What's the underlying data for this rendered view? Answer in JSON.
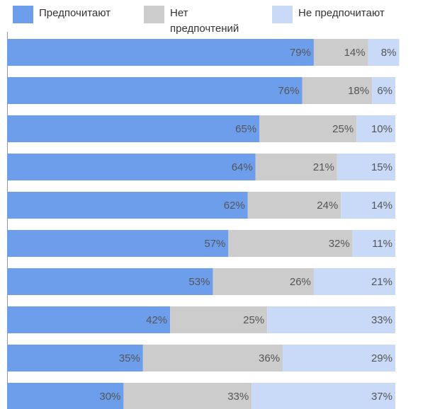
{
  "chart_data": {
    "type": "bar",
    "orientation": "horizontal",
    "stacked": true,
    "categories": [
      null,
      null,
      null,
      null,
      null,
      null,
      null,
      null,
      null,
      null
    ],
    "xlim": [
      0,
      100
    ],
    "legend": "top",
    "series": [
      {
        "name": "Предпочитают",
        "color": "#6d9eeb",
        "values": [
          79,
          76,
          65,
          64,
          62,
          57,
          53,
          42,
          35,
          30
        ],
        "value_labels": [
          "79%",
          "76%",
          "65%",
          "64%",
          "62%",
          "57%",
          "53%",
          "42%",
          "35%",
          "30%"
        ]
      },
      {
        "name": "Нет предпочтений",
        "color": "#cccccc",
        "values": [
          14,
          18,
          25,
          21,
          24,
          32,
          26,
          25,
          36,
          33
        ],
        "value_labels": [
          "14%",
          "18%",
          "25%",
          "21%",
          "24%",
          "32%",
          "26%",
          "25%",
          "36%",
          "33%"
        ]
      },
      {
        "name": "Не предпочитают",
        "color": "#c9daf8",
        "values": [
          8,
          6,
          10,
          15,
          14,
          11,
          21,
          33,
          29,
          37
        ],
        "value_labels": [
          "8%",
          "6%",
          "10%",
          "15%",
          "14%",
          "11%",
          "21%",
          "33%",
          "29%",
          "37%"
        ]
      }
    ]
  }
}
